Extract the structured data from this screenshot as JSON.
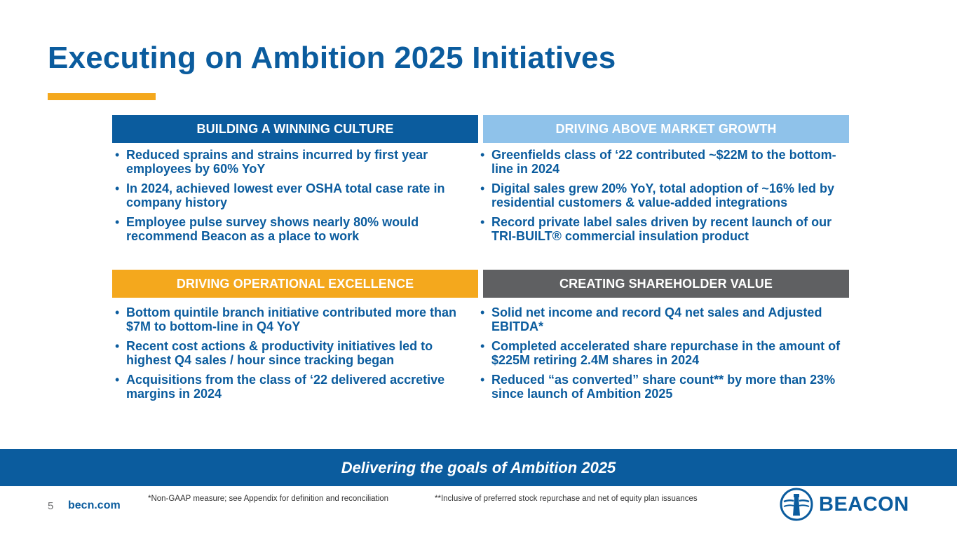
{
  "title": "Executing on Ambition 2025 Initiatives",
  "cards": {
    "culture": {
      "header": "BUILDING A WINNING CULTURE",
      "bullets": [
        "Reduced sprains and strains incurred by first year employees by 60% YoY",
        "In 2024, achieved lowest ever OSHA total case rate in company history",
        "Employee pulse survey shows nearly 80% would recommend Beacon as a place to work"
      ]
    },
    "growth": {
      "header": "DRIVING ABOVE MARKET GROWTH",
      "bullets": [
        "Greenfields class of ‘22 contributed ~$22M to the bottom-line in 2024",
        "Digital sales grew 20% YoY, total adoption of ~16% led by residential customers & value-added integrations",
        "Record private label sales driven by recent launch of our TRI-BUILT® commercial insulation product"
      ]
    },
    "operations": {
      "header": "DRIVING OPERATIONAL EXCELLENCE",
      "bullets": [
        "Bottom quintile branch initiative contributed more than $7M to bottom-line in Q4 YoY",
        "Recent cost actions & productivity initiatives led to highest Q4 sales / hour since tracking began",
        "Acquisitions from the class of ‘22 delivered accretive margins in 2024"
      ]
    },
    "shareholder": {
      "header": "CREATING SHAREHOLDER VALUE",
      "bullets": [
        "Solid net income and record Q4 net sales and Adjusted EBITDA*",
        "Completed accelerated share repurchase in the amount of $225M retiring 2.4M shares in 2024",
        "Reduced “as converted” share count** by more than 23% since launch of Ambition 2025"
      ]
    }
  },
  "banner": "Delivering the goals of Ambition 2025",
  "footer": {
    "page_number": "5",
    "website": "becn.com",
    "footnote_1": "*Non-GAAP measure; see Appendix for definition and reconciliation",
    "footnote_2": "**Inclusive of preferred stock repurchase and net of equity plan issuances",
    "logo_text": "BEACON"
  },
  "colors": {
    "brand_blue": "#0b5c9e",
    "light_blue": "#8fc2ea",
    "orange": "#f4a81d",
    "gray": "#5f6062"
  }
}
